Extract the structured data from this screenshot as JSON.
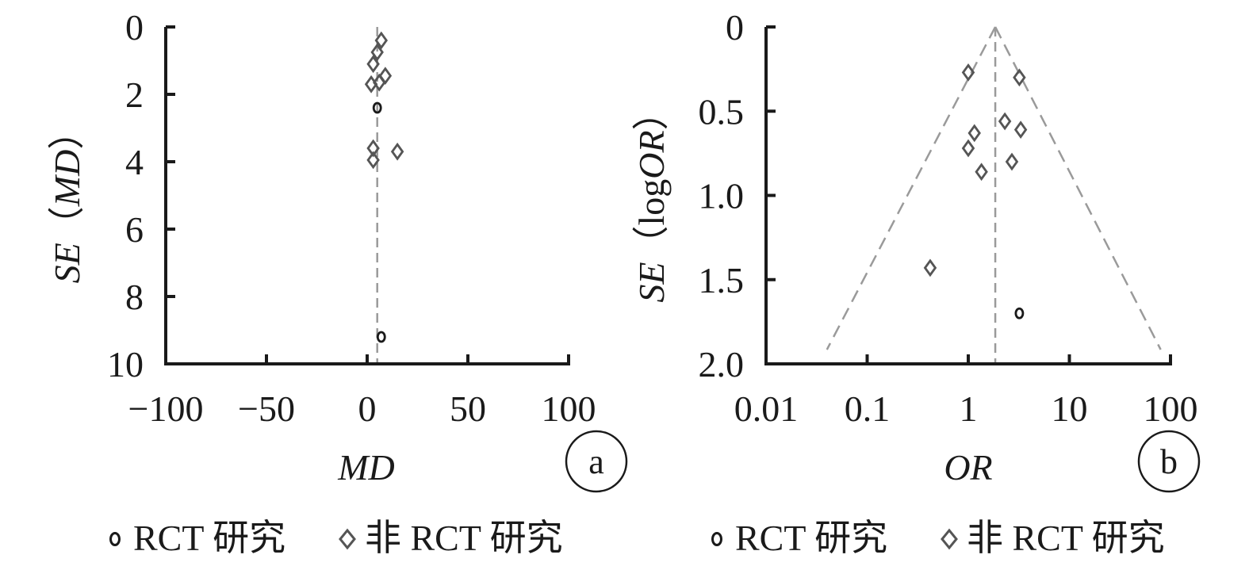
{
  "colors": {
    "axis": "#1a1a1a",
    "marker": "#555555",
    "rct_marker": "#1a1a1a",
    "guide": "#9a9a9a"
  },
  "chart_data": [
    {
      "type": "scatter",
      "panel_label": "a",
      "xlabel": "MD",
      "ylabel": {
        "prefix": "SE",
        "paren_open": "（",
        "inner": "MD",
        "paren_close": "）"
      },
      "xscale": "linear",
      "xlim": [
        -100,
        100
      ],
      "ylim": [
        0,
        10
      ],
      "y_inverted": true,
      "xticks": [
        -100,
        -50,
        0,
        50,
        100
      ],
      "xtick_labels": [
        "−100",
        "−50",
        "0",
        "50",
        "100"
      ],
      "yticks": [
        0,
        2,
        4,
        6,
        8,
        10
      ],
      "ytick_labels": [
        "0",
        "2",
        "4",
        "6",
        "8",
        "10"
      ],
      "pooled_estimate": 5,
      "funnel": false,
      "series": [
        {
          "name": "RCT 研究",
          "marker": "circle",
          "x": [
            5,
            7
          ],
          "y": [
            2.4,
            9.2
          ]
        },
        {
          "name": "非 RCT 研究",
          "marker": "diamond",
          "x": [
            7,
            5,
            3,
            9,
            2,
            6,
            3,
            15,
            3
          ],
          "y": [
            0.4,
            0.75,
            1.1,
            1.45,
            1.7,
            1.65,
            3.6,
            3.7,
            3.95
          ]
        }
      ]
    },
    {
      "type": "scatter",
      "panel_label": "b",
      "xlabel": "OR",
      "ylabel": {
        "prefix": "SE",
        "paren_open": "（",
        "inner_plain": "log",
        "inner": "OR",
        "paren_close": "）"
      },
      "xscale": "log",
      "xlim": [
        0.01,
        100
      ],
      "ylim": [
        0,
        2.0
      ],
      "y_inverted": true,
      "xticks": [
        0.01,
        0.1,
        1,
        10,
        100
      ],
      "xtick_labels": [
        "0.01",
        "0.1",
        "1",
        "10",
        "100"
      ],
      "yticks": [
        0,
        0.5,
        1.0,
        1.5,
        2.0
      ],
      "ytick_labels": [
        "0",
        "0.5",
        "1.0",
        "1.5",
        "2.0"
      ],
      "pooled_estimate": 1.85,
      "funnel": true,
      "funnel_bottom_x": [
        0.04,
        80
      ],
      "series": [
        {
          "name": "RCT 研究",
          "marker": "circle",
          "x": [
            3.2
          ],
          "y": [
            1.7
          ]
        },
        {
          "name": "非 RCT 研究",
          "marker": "diamond",
          "x": [
            1.0,
            3.2,
            2.3,
            3.3,
            1.15,
            1.0,
            2.7,
            1.35,
            0.42
          ],
          "y": [
            0.27,
            0.3,
            0.56,
            0.61,
            0.63,
            0.72,
            0.8,
            0.86,
            1.43
          ]
        }
      ]
    }
  ],
  "legends": [
    {
      "rct_label": "RCT 研究",
      "non_rct_label": "非 RCT 研究"
    },
    {
      "rct_label": "RCT 研究",
      "non_rct_label": "非 RCT 研究"
    }
  ]
}
